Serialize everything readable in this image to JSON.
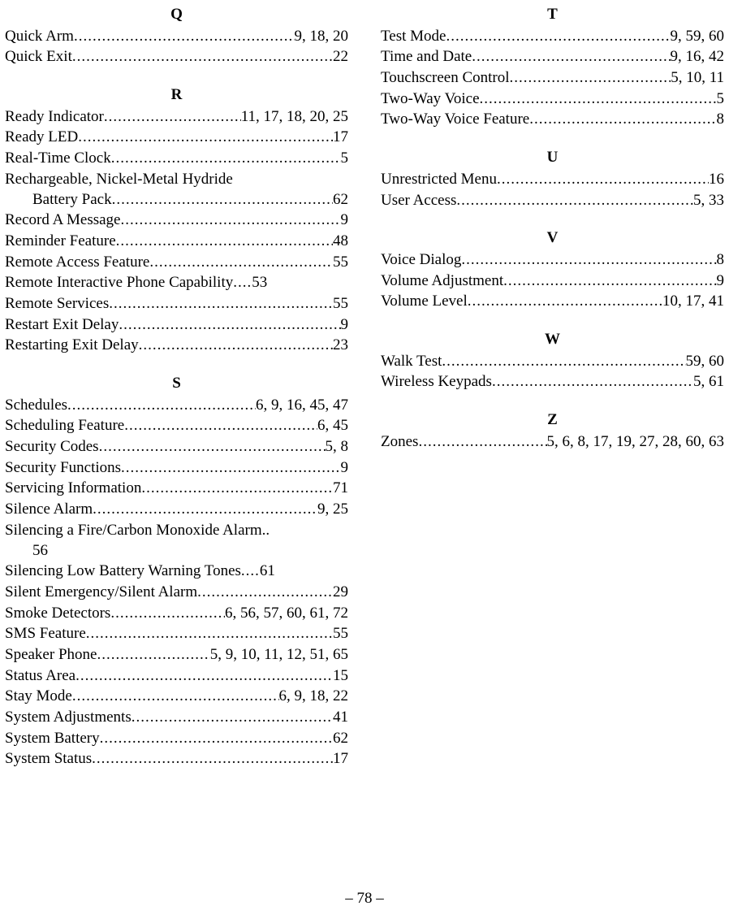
{
  "pageNumber": "– 78 –",
  "dots": "..................................................................................",
  "leftColumn": [
    {
      "letter": "Q",
      "gap": false
    },
    {
      "term": "Quick Arm",
      "pages": "9, 18, 20"
    },
    {
      "term": "Quick Exit",
      "pages": "22"
    },
    {
      "letter": "R",
      "gap": true
    },
    {
      "term": "Ready Indicator",
      "pages": "11, 17, 18, 20, 25"
    },
    {
      "term": "Ready LED",
      "pages": "17"
    },
    {
      "term": "Real-Time Clock",
      "pages": "5"
    },
    {
      "wrap": true,
      "line1": "Rechargeable, Nickel-Metal Hydride",
      "line2term": "Battery Pack",
      "pages": "62"
    },
    {
      "term": "Record A Message",
      "pages": "9"
    },
    {
      "term": "Reminder Feature",
      "pages": "48"
    },
    {
      "term": "Remote Access Feature",
      "pages": "55"
    },
    {
      "term": "Remote Interactive Phone Capability",
      "pages": "53",
      "shortdots": true
    },
    {
      "term": "Remote Services",
      "pages": "55"
    },
    {
      "term": "Restart Exit Delay",
      "pages": "9"
    },
    {
      "term": "Restarting Exit Delay",
      "pages": "23"
    },
    {
      "letter": "S",
      "gap": true
    },
    {
      "term": "Schedules",
      "pages": "6, 9, 16, 45, 47"
    },
    {
      "term": "Scheduling Feature",
      "pages": "6, 45"
    },
    {
      "term": "Security Codes",
      "pages": "5, 8"
    },
    {
      "term": "Security Functions",
      "pages": "9"
    },
    {
      "term": "Servicing Information",
      "pages": "71"
    },
    {
      "term": "Silence Alarm",
      "pages": "9, 25"
    },
    {
      "wrap": true,
      "line1": "Silencing a Fire/Carbon Monoxide Alarm..",
      "line2term": "56",
      "nopages": true
    },
    {
      "term": "Silencing Low Battery Warning Tones",
      "pages": "61",
      "shortdots": true
    },
    {
      "term": "Silent Emergency/Silent Alarm",
      "pages": "29"
    },
    {
      "term": "Smoke Detectors",
      "pages": "6, 56, 57, 60, 61, 72"
    },
    {
      "term": "SMS Feature",
      "pages": "55"
    },
    {
      "term": "Speaker Phone",
      "pages": "5, 9, 10, 11, 12, 51, 65"
    },
    {
      "term": "Status Area",
      "pages": "15"
    },
    {
      "term": "Stay Mode",
      "pages": "6, 9, 18, 22"
    },
    {
      "term": "System Adjustments",
      "pages": "41"
    },
    {
      "term": "System Battery",
      "pages": "62"
    },
    {
      "term": "System Status",
      "pages": "17"
    }
  ],
  "rightColumn": [
    {
      "letter": "T",
      "gap": false
    },
    {
      "term": "Test Mode",
      "pages": "9, 59, 60"
    },
    {
      "term": "Time and Date",
      "pages": "9, 16, 42"
    },
    {
      "term": "Touchscreen Control",
      "pages": "5, 10, 11"
    },
    {
      "term": "Two-Way Voice",
      "pages": "5"
    },
    {
      "term": "Two-Way Voice Feature",
      "pages": "8"
    },
    {
      "letter": "U",
      "gap": true
    },
    {
      "term": "Unrestricted Menu",
      "pages": "16"
    },
    {
      "term": "User Access",
      "pages": "5, 33"
    },
    {
      "letter": "V",
      "gap": true
    },
    {
      "term": "Voice Dialog",
      "pages": "8"
    },
    {
      "term": "Volume Adjustment",
      "pages": "9"
    },
    {
      "term": "Volume Level",
      "pages": "10, 17, 41"
    },
    {
      "letter": "W",
      "gap": true
    },
    {
      "term": "Walk Test",
      "pages": "59, 60"
    },
    {
      "term": "Wireless Keypads",
      "pages": "5, 61"
    },
    {
      "letter": "Z",
      "gap": true
    },
    {
      "term": "Zones",
      "pages": "5, 6, 8, 17, 19, 27, 28, 60, 63"
    }
  ]
}
